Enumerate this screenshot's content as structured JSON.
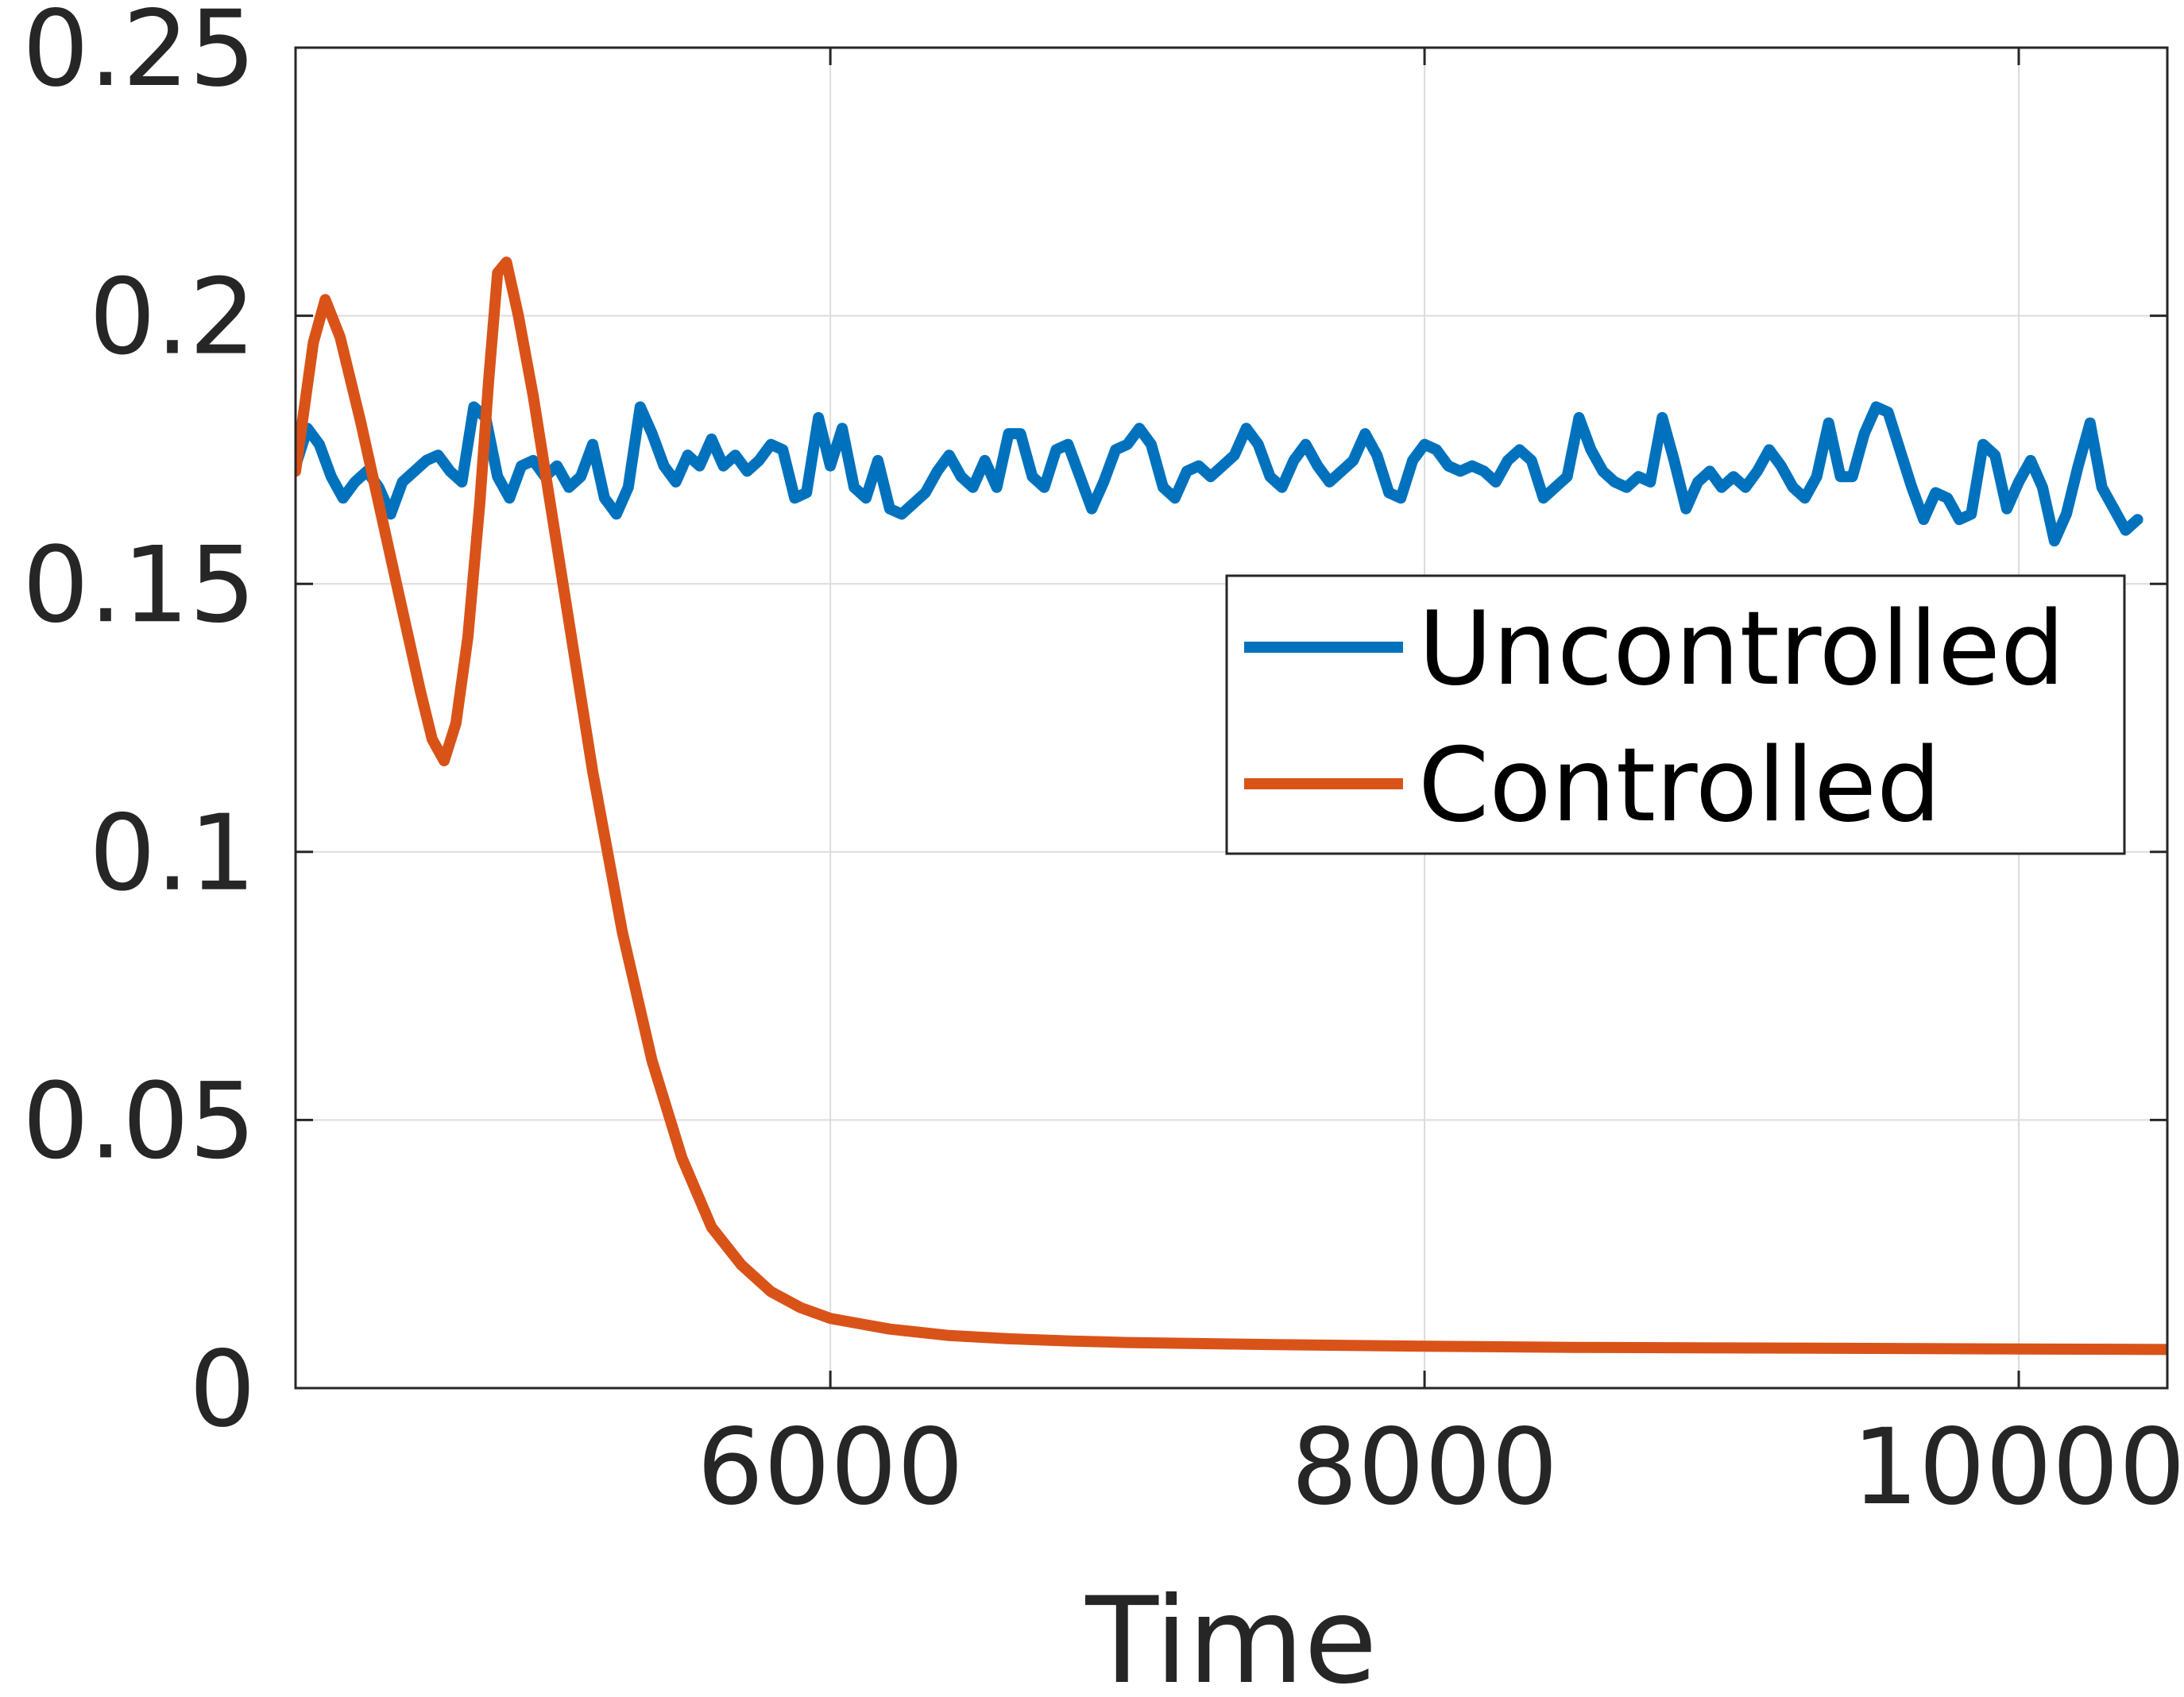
{
  "chart_data": {
    "type": "line",
    "title": "",
    "xlabel": "Time",
    "ylabel": "",
    "xlim": [
      4200,
      10500
    ],
    "ylim": [
      0,
      0.25
    ],
    "x_ticks": [
      6000,
      8000,
      10000
    ],
    "x_tick_labels": [
      "6000",
      "8000",
      "10000"
    ],
    "y_ticks": [
      0,
      0.05,
      0.1,
      0.15,
      0.2,
      0.25
    ],
    "y_tick_labels": [
      "0",
      "0.05",
      "0.1",
      "0.15",
      "0.2",
      "0.25"
    ],
    "grid": true,
    "legend": {
      "position": "right",
      "entries": [
        "Uncontrolled",
        "Controlled"
      ]
    },
    "series": [
      {
        "name": "Uncontrolled",
        "color": "#0072BD",
        "points": [
          [
            4200,
            0.172
          ],
          [
            4240,
            0.179
          ],
          [
            4280,
            0.176
          ],
          [
            4320,
            0.17
          ],
          [
            4360,
            0.166
          ],
          [
            4400,
            0.169
          ],
          [
            4440,
            0.171
          ],
          [
            4480,
            0.168
          ],
          [
            4520,
            0.163
          ],
          [
            4560,
            0.169
          ],
          [
            4600,
            0.171
          ],
          [
            4640,
            0.173
          ],
          [
            4680,
            0.174
          ],
          [
            4720,
            0.171
          ],
          [
            4760,
            0.169
          ],
          [
            4800,
            0.183
          ],
          [
            4840,
            0.181
          ],
          [
            4880,
            0.17
          ],
          [
            4920,
            0.166
          ],
          [
            4960,
            0.172
          ],
          [
            5000,
            0.173
          ],
          [
            5040,
            0.17
          ],
          [
            5080,
            0.172
          ],
          [
            5120,
            0.168
          ],
          [
            5160,
            0.17
          ],
          [
            5200,
            0.176
          ],
          [
            5240,
            0.166
          ],
          [
            5280,
            0.163
          ],
          [
            5320,
            0.168
          ],
          [
            5360,
            0.183
          ],
          [
            5400,
            0.178
          ],
          [
            5440,
            0.172
          ],
          [
            5480,
            0.169
          ],
          [
            5520,
            0.174
          ],
          [
            5560,
            0.172
          ],
          [
            5600,
            0.177
          ],
          [
            5640,
            0.172
          ],
          [
            5680,
            0.174
          ],
          [
            5720,
            0.171
          ],
          [
            5760,
            0.173
          ],
          [
            5800,
            0.176
          ],
          [
            5840,
            0.175
          ],
          [
            5880,
            0.166
          ],
          [
            5920,
            0.167
          ],
          [
            5960,
            0.181
          ],
          [
            6000,
            0.172
          ],
          [
            6040,
            0.179
          ],
          [
            6080,
            0.168
          ],
          [
            6120,
            0.166
          ],
          [
            6160,
            0.173
          ],
          [
            6200,
            0.164
          ],
          [
            6240,
            0.163
          ],
          [
            6280,
            0.165
          ],
          [
            6320,
            0.167
          ],
          [
            6360,
            0.171
          ],
          [
            6400,
            0.174
          ],
          [
            6440,
            0.17
          ],
          [
            6480,
            0.168
          ],
          [
            6520,
            0.173
          ],
          [
            6560,
            0.168
          ],
          [
            6600,
            0.178
          ],
          [
            6640,
            0.178
          ],
          [
            6680,
            0.17
          ],
          [
            6720,
            0.168
          ],
          [
            6760,
            0.175
          ],
          [
            6800,
            0.176
          ],
          [
            6840,
            0.17
          ],
          [
            6880,
            0.164
          ],
          [
            6920,
            0.169
          ],
          [
            6960,
            0.175
          ],
          [
            7000,
            0.176
          ],
          [
            7040,
            0.179
          ],
          [
            7080,
            0.176
          ],
          [
            7120,
            0.168
          ],
          [
            7160,
            0.166
          ],
          [
            7200,
            0.171
          ],
          [
            7240,
            0.172
          ],
          [
            7280,
            0.17
          ],
          [
            7320,
            0.172
          ],
          [
            7360,
            0.174
          ],
          [
            7400,
            0.179
          ],
          [
            7440,
            0.176
          ],
          [
            7480,
            0.17
          ],
          [
            7520,
            0.168
          ],
          [
            7560,
            0.173
          ],
          [
            7600,
            0.176
          ],
          [
            7640,
            0.172
          ],
          [
            7680,
            0.169
          ],
          [
            7720,
            0.171
          ],
          [
            7760,
            0.173
          ],
          [
            7800,
            0.178
          ],
          [
            7840,
            0.174
          ],
          [
            7880,
            0.167
          ],
          [
            7920,
            0.166
          ],
          [
            7960,
            0.173
          ],
          [
            8000,
            0.176
          ],
          [
            8040,
            0.175
          ],
          [
            8080,
            0.172
          ],
          [
            8120,
            0.171
          ],
          [
            8160,
            0.172
          ],
          [
            8200,
            0.171
          ],
          [
            8240,
            0.169
          ],
          [
            8280,
            0.173
          ],
          [
            8320,
            0.175
          ],
          [
            8360,
            0.173
          ],
          [
            8400,
            0.166
          ],
          [
            8440,
            0.168
          ],
          [
            8480,
            0.17
          ],
          [
            8520,
            0.181
          ],
          [
            8560,
            0.175
          ],
          [
            8600,
            0.171
          ],
          [
            8640,
            0.169
          ],
          [
            8680,
            0.168
          ],
          [
            8720,
            0.17
          ],
          [
            8760,
            0.169
          ],
          [
            8800,
            0.181
          ],
          [
            8840,
            0.173
          ],
          [
            8880,
            0.164
          ],
          [
            8920,
            0.169
          ],
          [
            8960,
            0.171
          ],
          [
            9000,
            0.168
          ],
          [
            9040,
            0.17
          ],
          [
            9080,
            0.168
          ],
          [
            9120,
            0.171
          ],
          [
            9160,
            0.175
          ],
          [
            9200,
            0.172
          ],
          [
            9240,
            0.168
          ],
          [
            9280,
            0.166
          ],
          [
            9320,
            0.17
          ],
          [
            9360,
            0.18
          ],
          [
            9400,
            0.17
          ],
          [
            9440,
            0.17
          ],
          [
            9480,
            0.178
          ],
          [
            9520,
            0.183
          ],
          [
            9560,
            0.182
          ],
          [
            9600,
            0.175
          ],
          [
            9640,
            0.168
          ],
          [
            9680,
            0.162
          ],
          [
            9720,
            0.167
          ],
          [
            9760,
            0.166
          ],
          [
            9800,
            0.162
          ],
          [
            9840,
            0.163
          ],
          [
            9880,
            0.176
          ],
          [
            9920,
            0.174
          ],
          [
            9960,
            0.164
          ],
          [
            10000,
            0.169
          ],
          [
            10040,
            0.173
          ],
          [
            10080,
            0.168
          ],
          [
            10120,
            0.158
          ],
          [
            10160,
            0.163
          ],
          [
            10200,
            0.172
          ],
          [
            10240,
            0.18
          ],
          [
            10280,
            0.168
          ],
          [
            10320,
            0.164
          ],
          [
            10360,
            0.16
          ],
          [
            10400,
            0.162
          ]
        ]
      },
      {
        "name": "Controlled",
        "color": "#D95319",
        "points": [
          [
            4200,
            0.171
          ],
          [
            4260,
            0.195
          ],
          [
            4300,
            0.203
          ],
          [
            4350,
            0.196
          ],
          [
            4420,
            0.18
          ],
          [
            4480,
            0.165
          ],
          [
            4540,
            0.15
          ],
          [
            4620,
            0.13
          ],
          [
            4660,
            0.121
          ],
          [
            4700,
            0.117
          ],
          [
            4740,
            0.124
          ],
          [
            4780,
            0.14
          ],
          [
            4820,
            0.165
          ],
          [
            4850,
            0.188
          ],
          [
            4880,
            0.208
          ],
          [
            4910,
            0.21
          ],
          [
            4950,
            0.2
          ],
          [
            5000,
            0.185
          ],
          [
            5100,
            0.15
          ],
          [
            5200,
            0.115
          ],
          [
            5300,
            0.085
          ],
          [
            5400,
            0.061
          ],
          [
            5500,
            0.043
          ],
          [
            5600,
            0.03
          ],
          [
            5700,
            0.023
          ],
          [
            5800,
            0.018
          ],
          [
            5900,
            0.015
          ],
          [
            6000,
            0.013
          ],
          [
            6100,
            0.012
          ],
          [
            6200,
            0.011
          ],
          [
            6400,
            0.0098
          ],
          [
            6600,
            0.0092
          ],
          [
            6800,
            0.0088
          ],
          [
            7000,
            0.0085
          ],
          [
            7500,
            0.0081
          ],
          [
            8000,
            0.0078
          ],
          [
            8500,
            0.0076
          ],
          [
            9000,
            0.0075
          ],
          [
            9500,
            0.0074
          ],
          [
            10000,
            0.0073
          ],
          [
            10500,
            0.0072
          ]
        ]
      }
    ]
  }
}
